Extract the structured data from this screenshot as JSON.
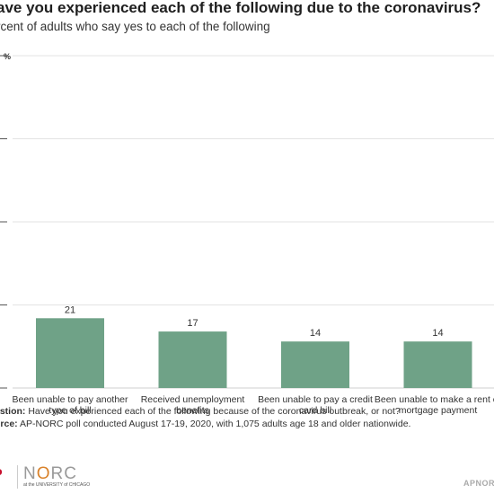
{
  "chart_data": {
    "type": "bar",
    "title": "ave you experienced each of the following due to the coronavirus?",
    "subtitle": "rcent of adults who say yes to each of the following",
    "categories": [
      [
        "Been unable to pay another",
        "type of bill"
      ],
      [
        "Received unemployment",
        "benefits"
      ],
      [
        "Been unable to pay a credit",
        "card bill"
      ],
      [
        "Been unable to make a rent or",
        "mortgage payment"
      ]
    ],
    "values": [
      21,
      17,
      14,
      14
    ],
    "ylim": [
      0,
      100
    ],
    "ytick_top_label": "%",
    "grid": true,
    "bar_color": "#6fa287"
  },
  "footer": {
    "question_label": "estion:",
    "question_text": " Have you experienced each of the following because of the coronavirus outbreak, or not?",
    "source_label": "urce:",
    "source_text": " AP-NORC poll conducted August 17-19, 2020, with 1,075 adults age 18 and older nationwide."
  },
  "logos": {
    "ap": "P",
    "norc": "NORC",
    "norc_sub": "at the UNIVERSITY of CHICAGO",
    "apnorc": "APNORC"
  }
}
